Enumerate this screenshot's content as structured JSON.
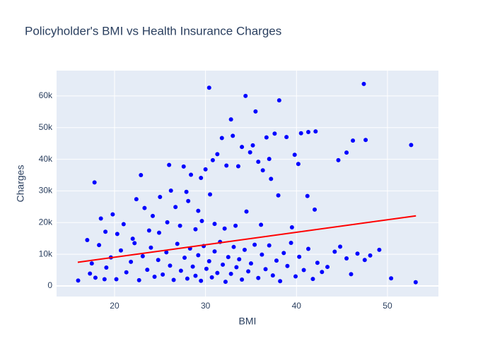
{
  "chart_data": {
    "type": "scatter",
    "title": "Policyholder's BMI vs Health Insurance Charges",
    "x_label": "BMI",
    "y_label": "Charges",
    "xlim": [
      13.63,
      55.6
    ],
    "ylim": [
      -3350,
      68000
    ],
    "xticks": [
      20,
      30,
      40,
      50
    ],
    "yticks": [
      0,
      {
        "value": 10000,
        "label": "10k"
      },
      {
        "value": 20000,
        "label": "20k"
      },
      {
        "value": 30000,
        "label": "30k"
      },
      {
        "value": 40000,
        "label": "40k"
      },
      {
        "value": 50000,
        "label": "50k"
      },
      {
        "value": 60000,
        "label": "60k"
      }
    ],
    "grid": true,
    "series": [
      {
        "mode": "markers",
        "color": "#0000ff",
        "x": [
          30.4,
          47.4,
          34.4,
          38.1,
          35.5,
          32.8,
          52.6,
          53.1,
          50.4,
          17.8,
          22.9,
          26.0,
          27.6,
          47.6,
          46.2,
          45.5,
          44.6,
          42.1,
          41.3,
          40.5,
          39.8,
          37.6,
          36.7,
          35.2,
          34.0,
          33.0,
          31.8,
          30.8,
          30.0,
          29.5,
          31.3,
          32.3,
          34.9,
          36.3,
          38.9,
          40.2,
          37.0,
          33.6,
          28.4,
          35.8,
          18.5,
          19.8,
          21.0,
          22.4,
          23.3,
          24.2,
          25.0,
          25.8,
          26.7,
          27.2,
          28.1,
          28.9,
          29.6,
          30.5,
          31.0,
          32.1,
          33.3,
          34.5,
          36.1,
          37.2,
          38.0,
          39.5,
          41.2,
          42.0,
          23.8,
          26.2,
          27.9,
          20.3,
          24.9,
          29.2,
          22.0,
          17.0,
          19.0,
          16.0,
          17.3,
          17.9,
          18.3,
          19.1,
          19.6,
          20.2,
          20.7,
          21.3,
          21.8,
          22.2,
          22.7,
          23.1,
          23.6,
          24.0,
          24.4,
          24.8,
          25.3,
          25.7,
          26.1,
          26.5,
          26.9,
          27.3,
          27.7,
          28.0,
          28.3,
          28.6,
          28.9,
          29.2,
          29.5,
          29.8,
          30.1,
          30.4,
          30.7,
          31.0,
          31.3,
          31.6,
          31.9,
          32.2,
          32.5,
          32.8,
          33.1,
          33.4,
          33.7,
          34.0,
          34.3,
          34.7,
          35.0,
          35.4,
          35.8,
          36.2,
          36.6,
          37.0,
          37.4,
          37.8,
          38.2,
          38.6,
          39.0,
          39.4,
          39.9,
          40.3,
          40.8,
          41.3,
          41.8,
          42.3,
          42.8,
          43.4,
          44.2,
          44.8,
          45.5,
          46.0,
          46.7,
          47.5,
          48.1,
          49.1,
          17.5,
          18.9
        ],
        "values": [
          62600,
          63800,
          60000,
          58600,
          55100,
          52600,
          44500,
          1160,
          2400,
          32700,
          35000,
          38200,
          37700,
          46100,
          45900,
          42100,
          39700,
          48800,
          48600,
          48200,
          41400,
          48100,
          46900,
          44400,
          43900,
          47400,
          46700,
          39700,
          36800,
          34100,
          41600,
          38000,
          42200,
          36500,
          47000,
          38500,
          40100,
          37800,
          35100,
          39200,
          21300,
          22600,
          19500,
          27400,
          24600,
          22100,
          28100,
          20100,
          24900,
          19000,
          26800,
          17900,
          20500,
          28900,
          19600,
          18100,
          19000,
          23500,
          19300,
          33800,
          28600,
          18500,
          28400,
          24100,
          17500,
          30100,
          29700,
          16400,
          16800,
          23700,
          14900,
          14500,
          17100,
          1700,
          3900,
          2600,
          12900,
          5800,
          9000,
          2100,
          11200,
          4300,
          7600,
          13500,
          1800,
          9400,
          5100,
          12100,
          2900,
          8200,
          3600,
          10600,
          6400,
          1900,
          13300,
          4800,
          8900,
          2300,
          11800,
          6100,
          3200,
          9700,
          1600,
          12600,
          5400,
          7800,
          2700,
          10900,
          4100,
          13900,
          6700,
          1300,
          9100,
          3800,
          12300,
          5900,
          8400,
          2000,
          11400,
          4600,
          7100,
          13000,
          2500,
          9900,
          5300,
          12800,
          3300,
          8000,
          1500,
          10400,
          6300,
          13600,
          3000,
          9200,
          5000,
          11700,
          2200,
          7300,
          4400,
          6000,
          10800,
          12400,
          8700,
          3700,
          10200,
          8200,
          9600,
          11400,
          7100,
          2100
        ]
      },
      {
        "mode": "lines",
        "color": "#ff0000",
        "x": [
          15.96,
          53.13
        ],
        "values": [
          7460,
          22120
        ]
      }
    ]
  }
}
